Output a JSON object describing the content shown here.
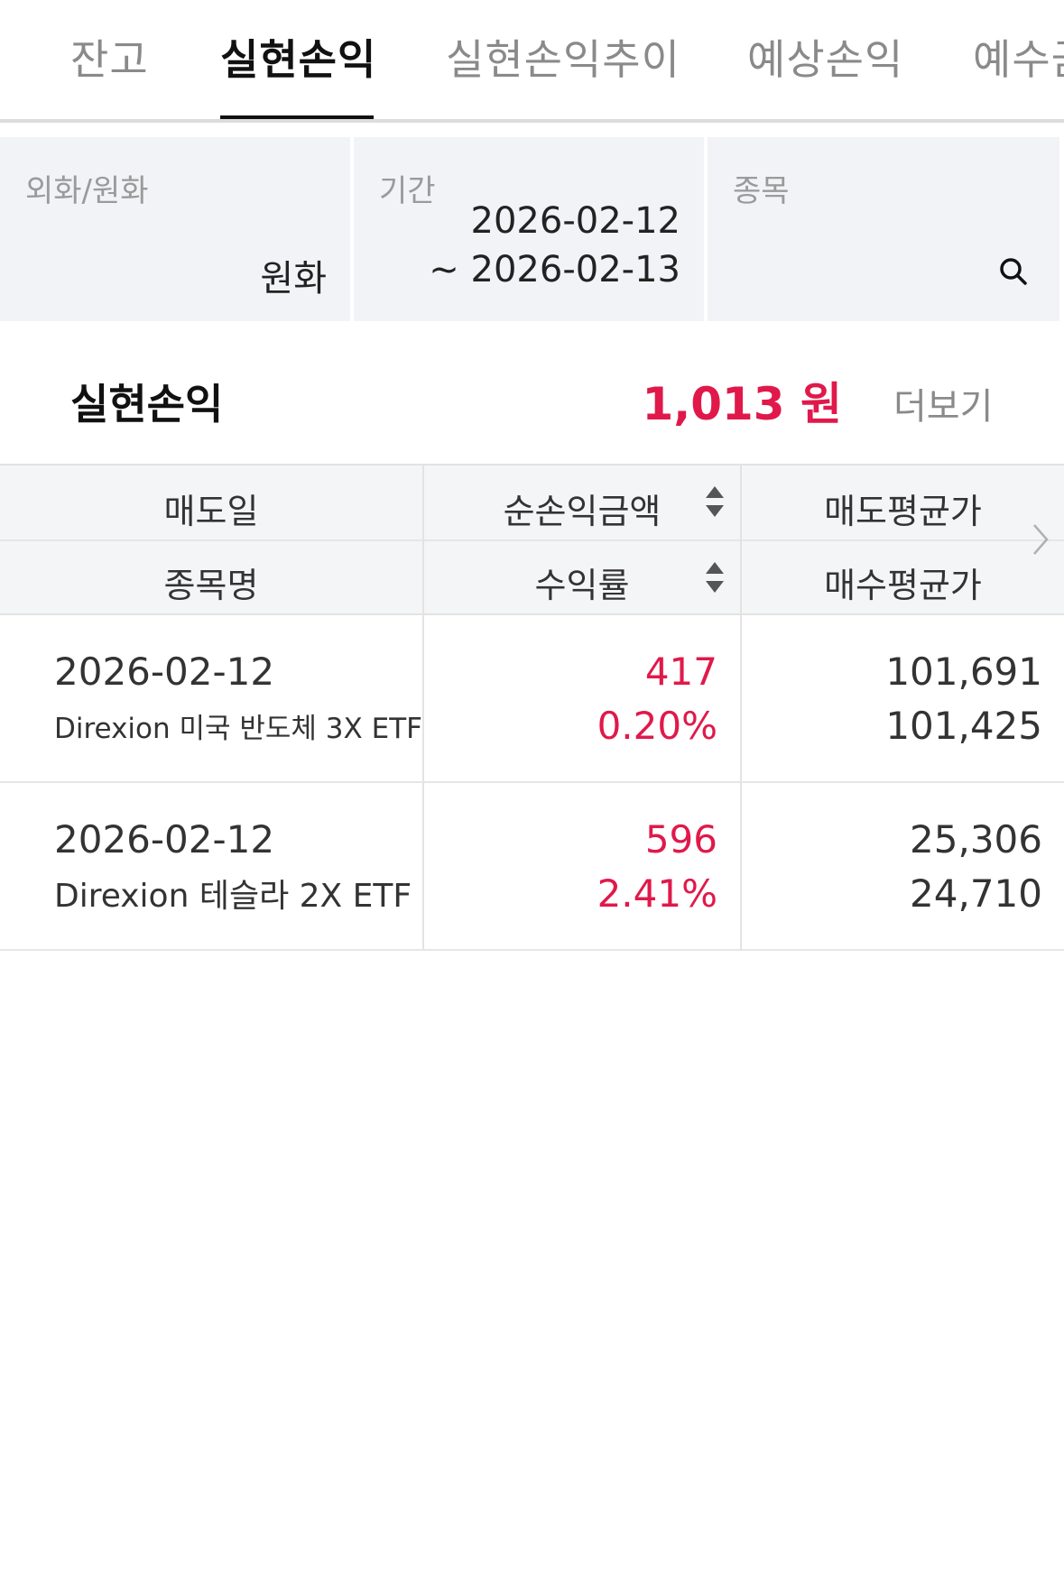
{
  "tabs": [
    {
      "label": "잔고",
      "active": false
    },
    {
      "label": "실현손익",
      "active": true
    },
    {
      "label": "실현손익추이",
      "active": false
    },
    {
      "label": "예상손익",
      "active": false
    },
    {
      "label": "예수금",
      "active": false
    }
  ],
  "filters": {
    "currency": {
      "label": "외화/원화",
      "value": "원화"
    },
    "period": {
      "label": "기간",
      "start": "2026-02-12",
      "end": "~ 2026-02-13"
    },
    "stock": {
      "label": "종목",
      "icon": "search-icon"
    }
  },
  "summary": {
    "title": "실현손익",
    "amount": "1,013 원",
    "more_label": "더보기"
  },
  "table": {
    "headers": {
      "col1_top": "매도일",
      "col1_bottom": "종목명",
      "col2_top": "순손익금액",
      "col2_bottom": "수익률",
      "col3_top": "매도평균가",
      "col3_bottom": "매수평균가"
    },
    "rows": [
      {
        "sell_date": "2026-02-12",
        "name": "Direxion 미국 반도체 3X ETF",
        "net_profit": "417",
        "return_rate": "0.20%",
        "sell_avg": "101,691",
        "buy_avg": "101,425"
      },
      {
        "sell_date": "2026-02-12",
        "name": "Direxion 테슬라 2X ETF",
        "net_profit": "596",
        "return_rate": "2.41%",
        "sell_avg": "25,306",
        "buy_avg": "24,710"
      }
    ]
  },
  "colors": {
    "accent_red": "#e0194a",
    "filter_bg": "#f1f3f7",
    "header_bg": "#f4f5f7"
  }
}
